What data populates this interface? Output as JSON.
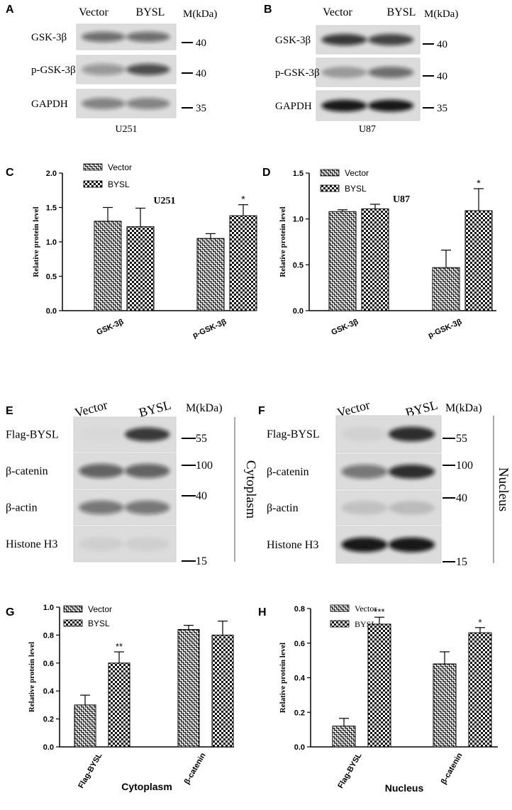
{
  "blots": [
    {
      "panel": "A",
      "lanes": [
        "Vector",
        "BYSL"
      ],
      "mw_header": "M(kDa)",
      "rows": [
        {
          "label": "GSK-3β",
          "marker": "40"
        },
        {
          "label": "p-GSK-3β",
          "marker": "40"
        },
        {
          "label": "GAPDH",
          "marker": "35"
        }
      ],
      "caption": "U251"
    },
    {
      "panel": "B",
      "lanes": [
        "Vector",
        "BYSL"
      ],
      "mw_header": "M(kDa)",
      "rows": [
        {
          "label": "GSK-3β",
          "marker": "40"
        },
        {
          "label": "p-GSK-3β",
          "marker": "40"
        },
        {
          "label": "GAPDH",
          "marker": "35"
        }
      ],
      "caption": "U87"
    },
    {
      "panel": "E",
      "lanes": [
        "Vector",
        "BYSL"
      ],
      "mw_header": "M(kDa)",
      "rows": [
        {
          "label": "Flag-BYSL",
          "marker": "55"
        },
        {
          "label": "β-catenin",
          "marker": "100"
        },
        {
          "label": "β-actin",
          "marker": "40"
        },
        {
          "label": "Histone H3",
          "marker": "15"
        }
      ],
      "side_label": "Cytoplasm"
    },
    {
      "panel": "F",
      "lanes": [
        "Vector",
        "BYSL"
      ],
      "mw_header": "M(kDa)",
      "rows": [
        {
          "label": "Flag-BYSL",
          "marker": "55"
        },
        {
          "label": "β-catenin",
          "marker": "100"
        },
        {
          "label": "β-actin",
          "marker": "40"
        },
        {
          "label": "Histone H3",
          "marker": "15"
        }
      ],
      "side_label": "Nucleus"
    }
  ],
  "chart_data": [
    {
      "panel": "C",
      "type": "bar",
      "title": "U251",
      "ylabel": "Relative protein level",
      "ylim": [
        0,
        2.0
      ],
      "yticks": [
        "0.0",
        "0.5",
        "1.0",
        "1.5",
        "2.0"
      ],
      "categories": [
        "GSK-3β",
        "p-GSK-3β"
      ],
      "series": [
        {
          "name": "Vector",
          "values": [
            1.3,
            1.05
          ],
          "errors": [
            0.2,
            0.07
          ]
        },
        {
          "name": "BYSL",
          "values": [
            1.22,
            1.38
          ],
          "errors": [
            0.27,
            0.16
          ]
        }
      ],
      "annotations": [
        {
          "category": 1,
          "series": 1,
          "text": "*"
        }
      ],
      "legend": "top-left",
      "xlabel": ""
    },
    {
      "panel": "D",
      "type": "bar",
      "title": "U87",
      "ylabel": "Relative protein level",
      "ylim": [
        0,
        1.5
      ],
      "yticks": [
        "0.0",
        "0.5",
        "1.0",
        "1.5"
      ],
      "categories": [
        "GSK-3β",
        "p-GSK-3β"
      ],
      "series": [
        {
          "name": "Vector",
          "values": [
            1.08,
            0.47
          ],
          "errors": [
            0.02,
            0.19
          ]
        },
        {
          "name": "BYSL",
          "values": [
            1.11,
            1.09
          ],
          "errors": [
            0.05,
            0.24
          ]
        }
      ],
      "annotations": [
        {
          "category": 1,
          "series": 1,
          "text": "*"
        }
      ],
      "legend": "top-left",
      "xlabel": ""
    },
    {
      "panel": "G",
      "type": "bar",
      "title": "",
      "ylabel": "Relative protein level",
      "ylim": [
        0,
        1.0
      ],
      "yticks": [
        "0.0",
        "0.2",
        "0.4",
        "0.6",
        "0.8",
        "1.0"
      ],
      "categories": [
        "Flag-BYSL",
        "β-catenin"
      ],
      "series": [
        {
          "name": "Vector",
          "values": [
            0.3,
            0.84
          ],
          "errors": [
            0.07,
            0.03
          ]
        },
        {
          "name": "BYSL",
          "values": [
            0.6,
            0.8
          ],
          "errors": [
            0.08,
            0.1
          ]
        }
      ],
      "annotations": [
        {
          "category": 0,
          "series": 1,
          "text": "**"
        }
      ],
      "legend": "top-left",
      "xlabel": "Cytoplasm"
    },
    {
      "panel": "H",
      "type": "bar",
      "title": "",
      "ylabel": "Relative protein level",
      "ylim": [
        0,
        0.8
      ],
      "yticks": [
        "0.0",
        "0.2",
        "0.4",
        "0.6",
        "0.8"
      ],
      "categories": [
        "Flag-BYSL",
        "β-catenin"
      ],
      "series": [
        {
          "name": "Vector",
          "values": [
            0.12,
            0.48
          ],
          "errors": [
            0.045,
            0.07
          ]
        },
        {
          "name": "BYSL",
          "values": [
            0.71,
            0.66
          ],
          "errors": [
            0.04,
            0.03
          ]
        }
      ],
      "annotations": [
        {
          "category": 0,
          "series": 1,
          "text": "***"
        },
        {
          "category": 1,
          "series": 1,
          "text": "*"
        }
      ],
      "legend": "top-left",
      "xlabel": "Nucleus"
    }
  ]
}
